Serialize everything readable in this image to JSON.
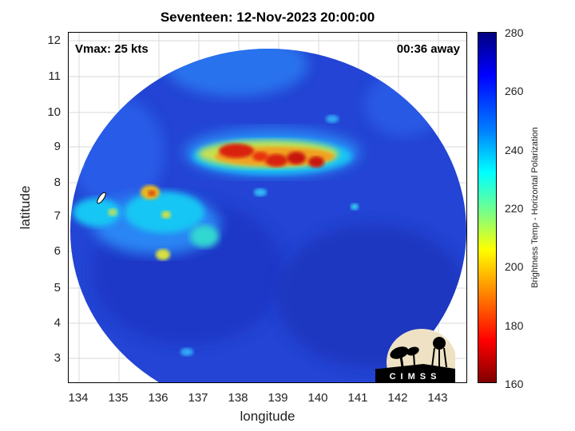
{
  "title": "Seventeen: 12-Nov-2023 20:00:00",
  "vmax_label": "Vmax: 25 kts",
  "time_label": "00:36 away",
  "xlabel": "longitude",
  "ylabel": "latitude",
  "x_ticks": [
    "134",
    "135",
    "136",
    "137",
    "138",
    "139",
    "140",
    "141",
    "142",
    "143"
  ],
  "y_ticks": [
    "12",
    "11",
    "10",
    "9",
    "8",
    "7",
    "6",
    "5",
    "4",
    "3"
  ],
  "colorbar": {
    "label": "Brightness Temp - Horizontal Polarization",
    "ticks": [
      "280",
      "260",
      "240",
      "220",
      "200",
      "180",
      "160"
    ],
    "range": [
      160,
      280
    ],
    "colormap": "jet"
  },
  "logo_text": "CIMSS",
  "colors": {
    "background_field": "#2046d8",
    "cold_core": "#c81808",
    "warm_edge": "#00c8ff"
  }
}
